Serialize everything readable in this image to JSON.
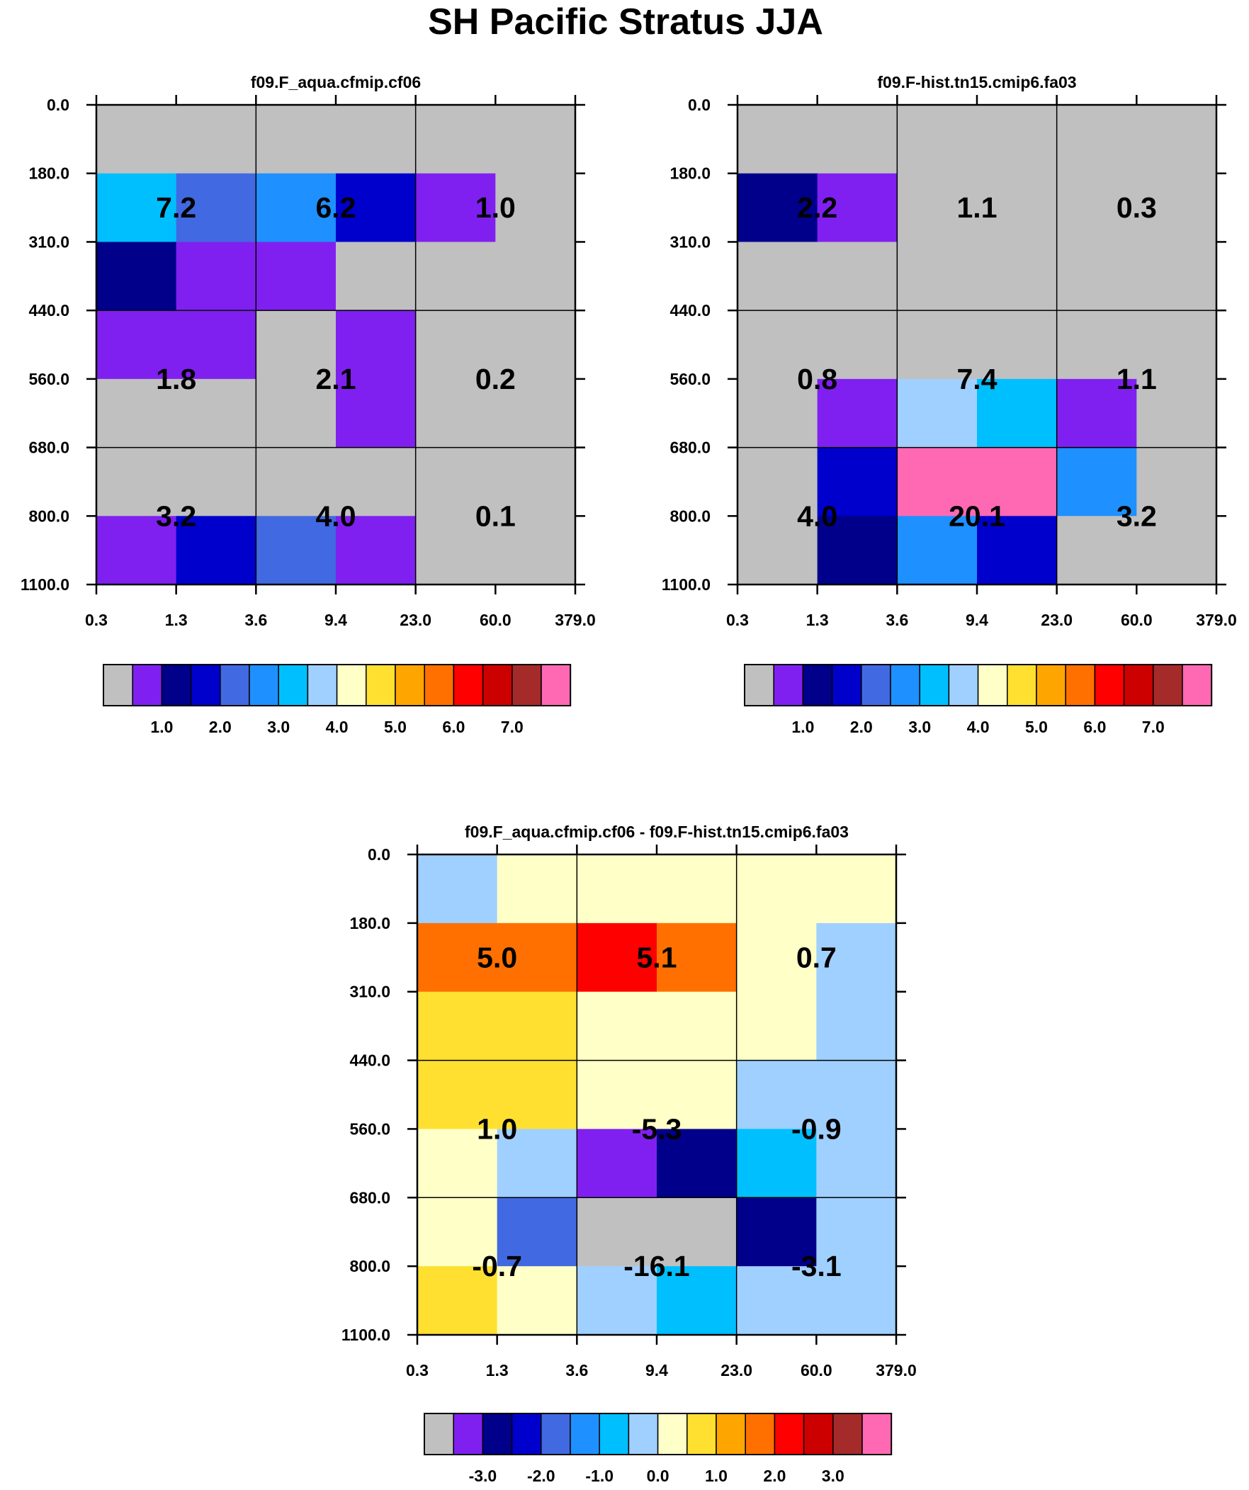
{
  "title": "SH Pacific Stratus JJA",
  "colors": {
    "gray": "#c0c0c0",
    "violet": "#8020f0",
    "navy": "#00008b",
    "blue": "#0000cd",
    "royal": "#4169e1",
    "dodger": "#1e90ff",
    "sky": "#00bfff",
    "pale": "#a0d0ff",
    "cream": "#ffffc8",
    "yellow": "#ffe030",
    "orange": "#ffa500",
    "dkorange": "#ff7000",
    "red": "#ff0000",
    "crimson": "#cd0000",
    "brown": "#a52a2a",
    "pink": "#ff69b4"
  },
  "chart_data": [
    {
      "id": "panel1",
      "type": "heatmap",
      "title": "f09.F_aqua.cfmip.cf06",
      "x_tick_labels": [
        "0.3",
        "1.3",
        "3.6",
        "9.4",
        "23.0",
        "60.0",
        "379.0"
      ],
      "y_tick_labels": [
        "0.0",
        "180.0",
        "310.0",
        "440.0",
        "560.0",
        "680.0",
        "800.0",
        "1100.0"
      ],
      "y_ticks_right": true,
      "cells": [
        [
          "gray",
          "gray",
          "gray",
          "gray",
          "gray",
          "gray"
        ],
        [
          "sky",
          "royal",
          "dodger",
          "blue",
          "violet",
          "gray"
        ],
        [
          "navy",
          "violet",
          "violet",
          "gray",
          "gray",
          "gray"
        ],
        [
          "violet",
          "violet",
          "gray",
          "violet",
          "gray",
          "gray"
        ],
        [
          "gray",
          "gray",
          "gray",
          "violet",
          "gray",
          "gray"
        ],
        [
          "gray",
          "gray",
          "gray",
          "gray",
          "gray",
          "gray"
        ],
        [
          "violet",
          "blue",
          "royal",
          "violet",
          "gray",
          "gray"
        ]
      ],
      "cell_labels": [
        [
          "7.2",
          "6.2",
          "1.0"
        ],
        [
          "1.8",
          "2.1",
          "0.2"
        ],
        [
          "3.2",
          "4.0",
          "0.1"
        ]
      ],
      "colorbar": {
        "colors": [
          "gray",
          "violet",
          "navy",
          "blue",
          "royal",
          "dodger",
          "sky",
          "pale",
          "cream",
          "yellow",
          "orange",
          "dkorange",
          "red",
          "crimson",
          "brown",
          "pink"
        ],
        "labels": [
          "1.0",
          "2.0",
          "3.0",
          "4.0",
          "5.0",
          "6.0",
          "7.0"
        ]
      }
    },
    {
      "id": "panel2",
      "type": "heatmap",
      "title": "f09.F-hist.tn15.cmip6.fa03",
      "x_tick_labels": [
        "0.3",
        "1.3",
        "3.6",
        "9.4",
        "23.0",
        "60.0",
        "379.0"
      ],
      "y_tick_labels": [
        "0.0",
        "180.0",
        "310.0",
        "440.0",
        "560.0",
        "680.0",
        "800.0",
        "1100.0"
      ],
      "y_ticks_right": true,
      "cells": [
        [
          "gray",
          "gray",
          "gray",
          "gray",
          "gray",
          "gray"
        ],
        [
          "navy",
          "violet",
          "gray",
          "gray",
          "gray",
          "gray"
        ],
        [
          "gray",
          "gray",
          "gray",
          "gray",
          "gray",
          "gray"
        ],
        [
          "gray",
          "gray",
          "gray",
          "gray",
          "gray",
          "gray"
        ],
        [
          "gray",
          "violet",
          "pale",
          "sky",
          "violet",
          "gray"
        ],
        [
          "gray",
          "blue",
          "pink",
          "pink",
          "dodger",
          "gray"
        ],
        [
          "gray",
          "navy",
          "dodger",
          "blue",
          "gray",
          "gray"
        ]
      ],
      "cell_labels": [
        [
          "2.2",
          "1.1",
          "0.3"
        ],
        [
          "0.8",
          "7.4",
          "1.1"
        ],
        [
          "4.0",
          "20.1",
          "3.2"
        ]
      ],
      "colorbar": {
        "colors": [
          "gray",
          "violet",
          "navy",
          "blue",
          "royal",
          "dodger",
          "sky",
          "pale",
          "cream",
          "yellow",
          "orange",
          "dkorange",
          "red",
          "crimson",
          "brown",
          "pink"
        ],
        "labels": [
          "1.0",
          "2.0",
          "3.0",
          "4.0",
          "5.0",
          "6.0",
          "7.0"
        ]
      }
    },
    {
      "id": "panel3",
      "type": "heatmap",
      "title": "f09.F_aqua.cfmip.cf06 - f09.F-hist.tn15.cmip6.fa03",
      "x_tick_labels": [
        "0.3",
        "1.3",
        "3.6",
        "9.4",
        "23.0",
        "60.0",
        "379.0"
      ],
      "y_tick_labels": [
        "0.0",
        "180.0",
        "310.0",
        "440.0",
        "560.0",
        "680.0",
        "800.0",
        "1100.0"
      ],
      "y_ticks_right": true,
      "cells": [
        [
          "pale",
          "cream",
          "cream",
          "cream",
          "cream",
          "cream"
        ],
        [
          "dkorange",
          "dkorange",
          "red",
          "dkorange",
          "cream",
          "pale"
        ],
        [
          "yellow",
          "yellow",
          "cream",
          "cream",
          "cream",
          "pale"
        ],
        [
          "yellow",
          "yellow",
          "cream",
          "cream",
          "pale",
          "pale"
        ],
        [
          "cream",
          "pale",
          "violet",
          "navy",
          "sky",
          "pale"
        ],
        [
          "cream",
          "royal",
          "gray",
          "gray",
          "navy",
          "pale"
        ],
        [
          "yellow",
          "cream",
          "pale",
          "sky",
          "pale",
          "pale"
        ]
      ],
      "cell_labels": [
        [
          "5.0",
          "5.1",
          "0.7"
        ],
        [
          "1.0",
          "-5.3",
          "-0.9"
        ],
        [
          "-0.7",
          "-16.1",
          "-3.1"
        ]
      ],
      "colorbar": {
        "colors": [
          "gray",
          "violet",
          "navy",
          "blue",
          "royal",
          "dodger",
          "sky",
          "pale",
          "cream",
          "yellow",
          "orange",
          "dkorange",
          "red",
          "crimson",
          "brown",
          "pink"
        ],
        "labels": [
          "-3.0",
          "-2.0",
          "-1.0",
          "0.0",
          "1.0",
          "2.0",
          "3.0"
        ]
      }
    }
  ]
}
